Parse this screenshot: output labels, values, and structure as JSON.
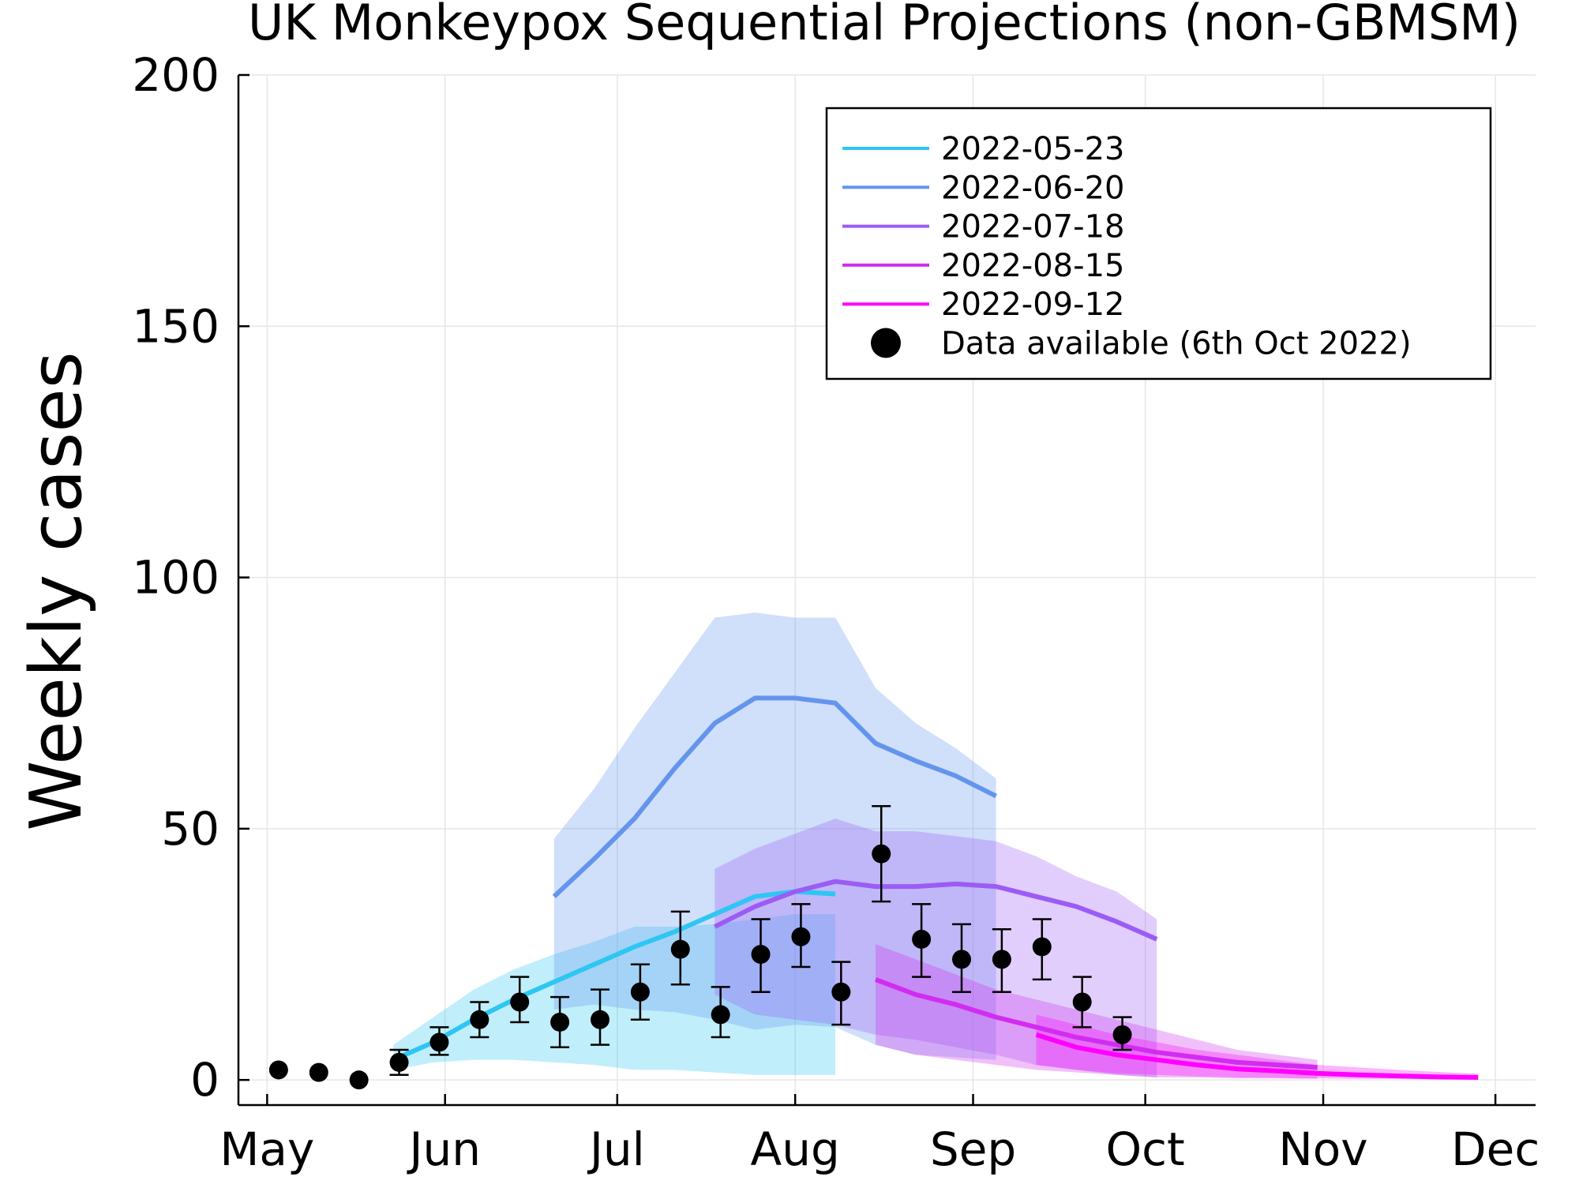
{
  "chart_data": {
    "type": "line",
    "title": "UK Monkeypox Sequential Projections (non-GBMSM)",
    "xlabel": "",
    "ylabel": "Weekly cases",
    "x_axis": {
      "type": "date",
      "range": [
        "2022-04-26",
        "2022-12-08"
      ],
      "ticks": [
        {
          "date": "2022-05-01",
          "label": "May"
        },
        {
          "date": "2022-06-01",
          "label": "Jun"
        },
        {
          "date": "2022-07-01",
          "label": "Jul"
        },
        {
          "date": "2022-08-01",
          "label": "Aug"
        },
        {
          "date": "2022-09-01",
          "label": "Sep"
        },
        {
          "date": "2022-10-01",
          "label": "Oct"
        },
        {
          "date": "2022-11-01",
          "label": "Nov"
        },
        {
          "date": "2022-12-01",
          "label": "Dec"
        }
      ]
    },
    "y_axis": {
      "range": [
        -5,
        200
      ],
      "ticks": [
        0,
        50,
        100,
        150,
        200
      ]
    },
    "grid": true,
    "legend_position": "top-right",
    "series": [
      {
        "name": "2022-05-23",
        "color": "#2ec6f2",
        "dates": [
          "2022-05-23",
          "2022-05-30",
          "2022-06-06",
          "2022-06-13",
          "2022-06-20",
          "2022-06-27",
          "2022-07-04",
          "2022-07-11",
          "2022-07-18",
          "2022-07-25",
          "2022-08-01",
          "2022-08-08"
        ],
        "values": [
          4,
          7.5,
          12,
          16,
          19.5,
          23,
          26.5,
          29.5,
          33,
          36.5,
          37.5,
          37
        ],
        "lower": [
          2,
          3.5,
          4,
          4,
          3.5,
          3,
          2,
          2,
          1.5,
          1,
          1,
          1
        ],
        "upper": [
          7,
          12.5,
          18,
          22,
          25,
          27.5,
          30.5,
          30.5,
          31,
          32,
          33,
          33
        ]
      },
      {
        "name": "2022-06-20",
        "color": "#6495ed",
        "dates": [
          "2022-06-20",
          "2022-06-27",
          "2022-07-04",
          "2022-07-11",
          "2022-07-18",
          "2022-07-25",
          "2022-08-01",
          "2022-08-08",
          "2022-08-15",
          "2022-08-22",
          "2022-08-29",
          "2022-09-05"
        ],
        "values": [
          36.5,
          44,
          52,
          62,
          71,
          76,
          76,
          75,
          67,
          63.5,
          60.5,
          56.5
        ],
        "lower": [
          14,
          15,
          14,
          13.5,
          12,
          10,
          11,
          10.5,
          7,
          5,
          4.5,
          4
        ],
        "upper": [
          48,
          58,
          70,
          81,
          92,
          93,
          92,
          92,
          78,
          71,
          66,
          60
        ]
      },
      {
        "name": "2022-07-18",
        "color": "#9b5cf5",
        "dates": [
          "2022-07-18",
          "2022-07-25",
          "2022-08-01",
          "2022-08-08",
          "2022-08-15",
          "2022-08-22",
          "2022-08-29",
          "2022-09-05",
          "2022-09-12",
          "2022-09-19",
          "2022-09-26",
          "2022-10-03"
        ],
        "values": [
          30.5,
          34.5,
          37.5,
          39.5,
          38.5,
          38.5,
          39,
          38.5,
          36.5,
          34.5,
          31.5,
          28
        ],
        "lower": [
          17,
          13,
          12,
          11,
          9,
          8,
          6.5,
          5,
          3,
          2,
          1,
          0.5
        ],
        "upper": [
          42,
          46,
          49,
          52,
          49.5,
          49.5,
          48.5,
          47.5,
          44.5,
          40.5,
          37.5,
          32
        ]
      },
      {
        "name": "2022-08-15",
        "color": "#d22cf0",
        "dates": [
          "2022-08-15",
          "2022-08-22",
          "2022-08-29",
          "2022-09-05",
          "2022-09-12",
          "2022-09-19",
          "2022-09-26",
          "2022-10-03",
          "2022-10-10",
          "2022-10-17",
          "2022-10-24",
          "2022-10-31"
        ],
        "values": [
          20,
          17,
          15,
          12.5,
          10.5,
          8.5,
          7,
          5.5,
          4.5,
          3.5,
          3,
          2.5
        ],
        "lower": [
          7,
          5,
          4,
          3,
          2,
          1.5,
          1,
          0.5,
          0.5,
          0.3,
          0.3,
          0.2
        ],
        "upper": [
          27,
          24,
          21,
          18,
          16,
          14,
          12,
          10,
          8,
          6,
          5,
          4
        ]
      },
      {
        "name": "2022-09-12",
        "color": "#ff00ff",
        "dates": [
          "2022-09-12",
          "2022-09-19",
          "2022-09-26",
          "2022-10-03",
          "2022-10-10",
          "2022-10-17",
          "2022-10-24",
          "2022-10-31",
          "2022-11-07",
          "2022-11-14",
          "2022-11-21",
          "2022-11-28"
        ],
        "values": [
          9,
          6.5,
          5,
          4,
          3,
          2.2,
          1.8,
          1.3,
          1,
          0.8,
          0.6,
          0.5
        ],
        "lower": [
          3,
          2,
          1.3,
          1,
          0.7,
          0.5,
          0.4,
          0.3,
          0.2,
          0.2,
          0.1,
          0.1
        ],
        "upper": [
          13,
          11,
          9,
          7.5,
          6,
          5,
          4,
          3,
          2.5,
          2,
          1.6,
          1.2
        ]
      }
    ],
    "observed": {
      "name": "Data available (6th Oct 2022)",
      "color": "#000000",
      "dates": [
        "2022-05-03",
        "2022-05-10",
        "2022-05-17",
        "2022-05-24",
        "2022-05-31",
        "2022-06-07",
        "2022-06-14",
        "2022-06-21",
        "2022-06-28",
        "2022-07-05",
        "2022-07-12",
        "2022-07-19",
        "2022-07-26",
        "2022-08-02",
        "2022-08-09",
        "2022-08-16",
        "2022-08-23",
        "2022-08-30",
        "2022-09-06",
        "2022-09-13",
        "2022-09-20",
        "2022-09-27"
      ],
      "values": [
        2,
        1.5,
        0,
        3.5,
        7.5,
        12,
        15.5,
        11.5,
        12,
        17.5,
        26,
        13,
        25,
        28.5,
        17.5,
        45,
        28,
        24,
        24,
        26.5,
        15.5,
        9
      ],
      "lower": [
        null,
        null,
        null,
        1,
        5,
        8.5,
        11.5,
        6.5,
        7,
        12,
        19,
        8.5,
        17.5,
        22.5,
        11,
        35.5,
        20.5,
        17.5,
        17.5,
        20,
        10.5,
        6
      ],
      "upper": [
        null,
        null,
        null,
        6,
        10.5,
        15.5,
        20.5,
        16.5,
        18,
        23,
        33.5,
        18.5,
        32,
        35,
        23.5,
        54.5,
        35,
        31,
        30,
        32,
        20.5,
        12.5
      ]
    }
  }
}
